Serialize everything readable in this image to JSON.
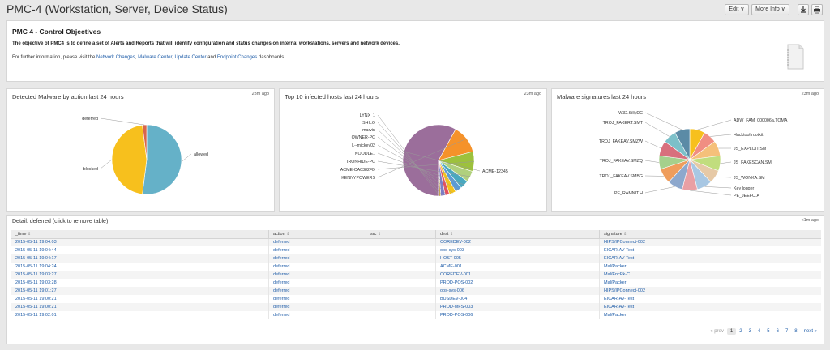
{
  "header": {
    "title": "PMC-4 (Workstation, Server, Device Status)",
    "edit_label": "Edit ∨",
    "more_info_label": "More Info ∨",
    "export_icon": "download-icon",
    "print_icon": "print-icon"
  },
  "objectives": {
    "title": "PMC 4 - Control Objectives",
    "description": "The objective of PMC4 is to define a set of Alerts and Reports that will identify configuration and status changes on internal workstations, servers and network devices.",
    "info_prefix": "For further information, please visit the ",
    "link_network_changes": "Network Changes",
    "sep1": ", ",
    "link_malware_center": "Malware Center",
    "sep2": ", ",
    "link_update_center": "Update Center",
    "sep3": " and ",
    "link_endpoint_changes": "Endpoint Changes",
    "info_suffix": " dashboards."
  },
  "panels": {
    "malware_by_action": {
      "title": "Detected Malware by action last 24 hours",
      "time": "23m ago"
    },
    "top_hosts": {
      "title": "Top 10 infected hosts last 24 hours",
      "time": "23m ago"
    },
    "signatures": {
      "title": "Malware signatures last 24 hours",
      "time": "23m ago"
    }
  },
  "chart_data": [
    {
      "type": "pie",
      "categories": [
        "allowed",
        "blocked",
        "deferred"
      ],
      "values": [
        52,
        46,
        2
      ],
      "colors": [
        "#65b1c8",
        "#f7c01d",
        "#d9654b"
      ]
    },
    {
      "type": "pie",
      "categories": [
        "ACME-12345",
        "KENNYPOWERS",
        "ACME-CA0382FD",
        "IRONHIDE-PC",
        "NOODLE1",
        "L--mickey02",
        "OWNER-PC",
        "marvin",
        "SHILO",
        "LYNX_1"
      ],
      "values": [
        58,
        13,
        9,
        5,
        4,
        3,
        3,
        2,
        2,
        1
      ],
      "colors": [
        "#9b6e9b",
        "#f5922a",
        "#9dc13d",
        "#b0d07d",
        "#4aa8bf",
        "#5b9bd5",
        "#f4c21b",
        "#e4505e",
        "#7b7bc6",
        "#c5a24a"
      ]
    },
    {
      "type": "pie",
      "categories": [
        "ADW_FAM_000006a.TOMA",
        "Hacktool.rootkit",
        "JS_EXPLOIT.SM",
        "JS_FAKESCAN.SMI",
        "JS_WONKA.SM",
        "Key logger",
        "PE_JEEFO.A",
        "PE_RAMNIT.H",
        "TROJ_FAKEAV.SMBG",
        "TROJ_FAKEAV.SMZQ",
        "TROJ_FAKEAV.SMZW",
        "TROJ_FAKERT.SMT",
        "W32.SillyDC"
      ],
      "values": [
        8,
        7,
        8,
        8,
        7,
        8,
        8,
        8,
        8,
        7,
        8,
        7,
        8
      ],
      "colors": [
        "#f7c01d",
        "#f08e82",
        "#f5c07a",
        "#c1dd7e",
        "#e6c9a6",
        "#a8c7e3",
        "#e99fa4",
        "#8da8cd",
        "#ef9d5c",
        "#a5d08c",
        "#d8707d",
        "#7cc0c9",
        "#5b8ba6"
      ]
    }
  ],
  "detail": {
    "title": "Detail: deferred (click to remove table)",
    "time": "<1m ago",
    "columns": [
      "_time",
      "action",
      "src",
      "dest",
      "signature"
    ],
    "sort_glyph": "⇕",
    "rows": [
      [
        "2015-05-11 19:04:03",
        "deferred",
        "",
        "COREDEV-002",
        "HIPS/IPConnect-002"
      ],
      [
        "2015-05-11 19:04:44",
        "deferred",
        "",
        "ops-sys-003",
        "EICAR-AV-Test"
      ],
      [
        "2015-05-11 19:04:17",
        "deferred",
        "",
        "HOST-005",
        "EICAR-AV-Test"
      ],
      [
        "2015-05-11 19:04:24",
        "deferred",
        "",
        "ACME-001",
        "Mal/Packer"
      ],
      [
        "2015-05-11 19:03:27",
        "deferred",
        "",
        "COREDEV-001",
        "Mal/EncPk-C"
      ],
      [
        "2015-05-11 19:03:28",
        "deferred",
        "",
        "PROD-POS-002",
        "Mal/Packer"
      ],
      [
        "2015-05-11 19:01:27",
        "deferred",
        "",
        "ops-sys-006",
        "HIPS/IPConnect-002"
      ],
      [
        "2015-05-11 19:00:21",
        "deferred",
        "",
        "BUSDEV-004",
        "EICAR-AV-Test"
      ],
      [
        "2015-05-11 19:00:21",
        "deferred",
        "",
        "PROD-MFS-003",
        "EICAR-AV-Test"
      ],
      [
        "2015-05-11 19:02:01",
        "deferred",
        "",
        "PROD-POS-006",
        "Mal/Packer"
      ]
    ]
  },
  "pager": {
    "prev": "« prev",
    "pages": [
      "1",
      "2",
      "3",
      "4",
      "5",
      "6",
      "7",
      "8"
    ],
    "next": "next »"
  }
}
